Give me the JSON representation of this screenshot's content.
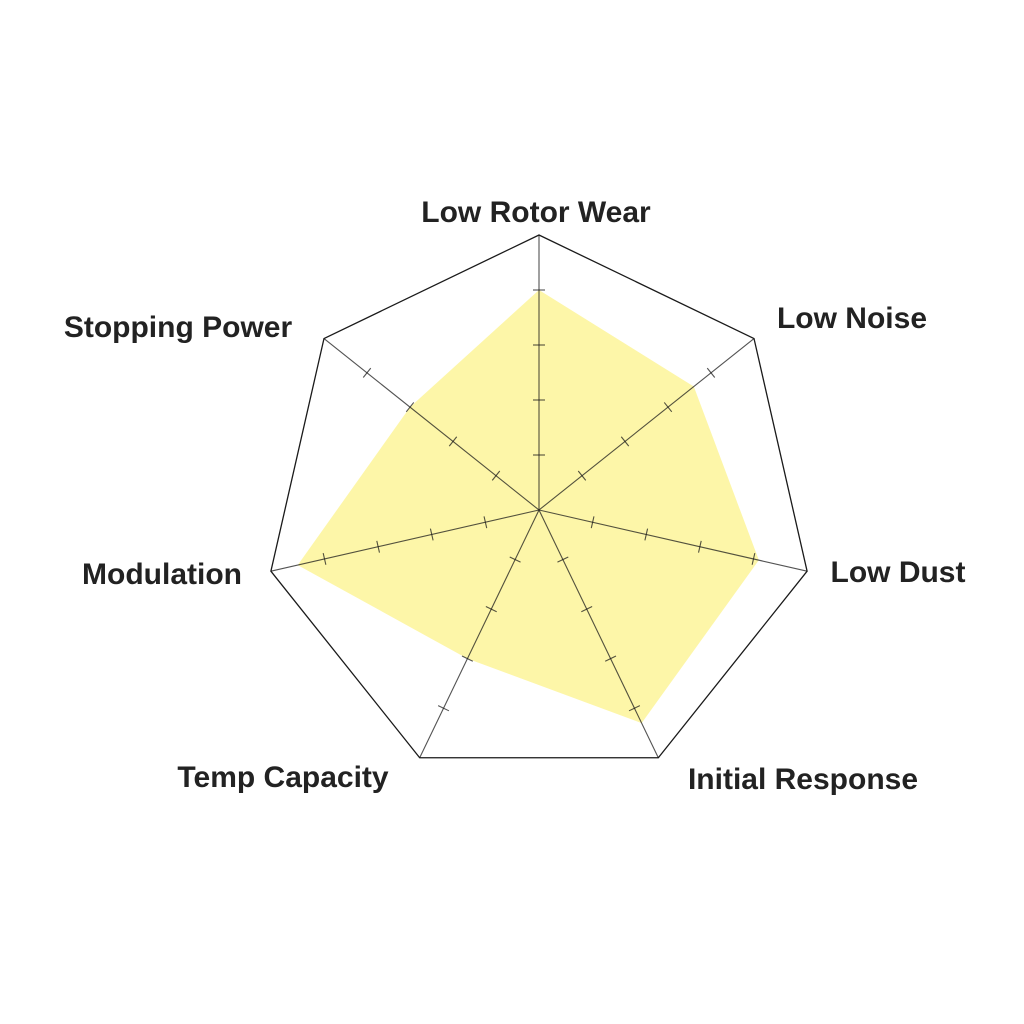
{
  "chart_data": {
    "type": "radar",
    "title": "",
    "axes": [
      "Low Rotor Wear",
      "Low Noise",
      "Low Dust",
      "Initial Response",
      "Temp Capacity",
      "Modulation",
      "Stopping Power"
    ],
    "range": [
      0,
      5
    ],
    "ticks": [
      1,
      2,
      3,
      4
    ],
    "series": [
      {
        "values": [
          4,
          3.6,
          4.1,
          4.3,
          3,
          4.5,
          3
        ]
      }
    ],
    "grid": "outer heptagon with spoke tick marks",
    "colors": {
      "fill": "#fdf6a8",
      "line": "#1a1a1a",
      "label": "#222222"
    }
  }
}
